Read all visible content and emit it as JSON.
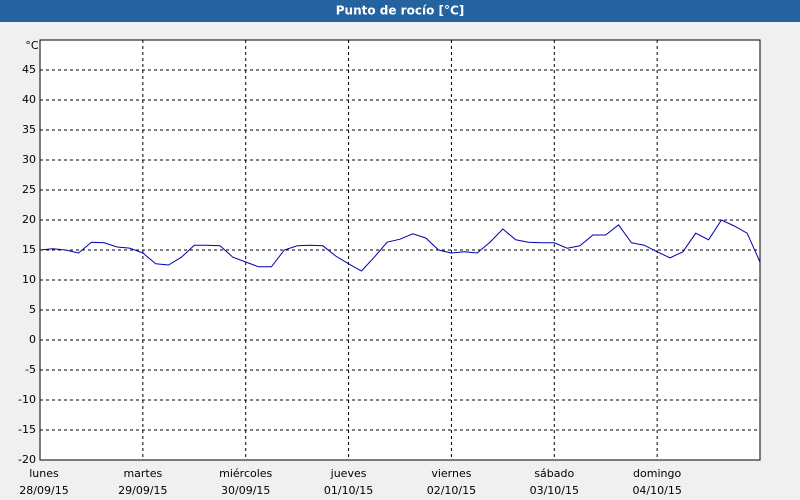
{
  "chart_data": {
    "type": "line",
    "title": "Punto de rocío [°C]",
    "y_label": "°C",
    "xlim": [
      0,
      7
    ],
    "xticks": [
      {
        "value": 0,
        "label": "lunes"
      },
      {
        "value": 1,
        "label": "martes"
      },
      {
        "value": 2,
        "label": "miércoles"
      },
      {
        "value": 3,
        "label": "jueves"
      },
      {
        "value": 4,
        "label": "viernes"
      },
      {
        "value": 5,
        "label": "sábado"
      },
      {
        "value": 6,
        "label": "domingo"
      }
    ],
    "xtick_dates": [
      "28/09/15",
      "29/09/15",
      "30/09/15",
      "01/10/15",
      "02/10/15",
      "03/10/15",
      "04/10/15"
    ],
    "ylim": [
      -20,
      50
    ],
    "yticks": [
      -20,
      -15,
      -10,
      -5,
      0,
      5,
      10,
      15,
      20,
      25,
      30,
      35,
      40,
      45
    ],
    "grid": true,
    "series": [
      {
        "name": "Punto de rocío",
        "color": "#0000a8",
        "x": [
          0,
          0.125,
          0.25,
          0.375,
          0.5,
          0.625,
          0.75,
          0.875,
          1,
          1.125,
          1.25,
          1.375,
          1.5,
          1.625,
          1.75,
          1.875,
          2,
          2.125,
          2.25,
          2.375,
          2.5,
          2.625,
          2.75,
          2.875,
          3,
          3.125,
          3.25,
          3.375,
          3.5,
          3.625,
          3.75,
          3.875,
          4,
          4.125,
          4.25,
          4.375,
          4.5,
          4.625,
          4.75,
          4.875,
          5,
          5.125,
          5.25,
          5.375,
          5.5,
          5.625,
          5.75,
          5.875,
          6,
          6.125,
          6.25,
          6.375,
          6.5,
          6.625,
          6.75,
          6.875,
          7
        ],
        "values": [
          15,
          15.2,
          15,
          14.5,
          16.3,
          16.2,
          15.5,
          15.3,
          14.5,
          12.7,
          12.5,
          13.8,
          15.8,
          15.8,
          15.7,
          13.8,
          13,
          12.2,
          12.2,
          15,
          15.7,
          15.8,
          15.7,
          14,
          12.7,
          11.5,
          13.8,
          16.3,
          16.8,
          17.7,
          17,
          15,
          14.5,
          14.7,
          14.5,
          16.3,
          18.5,
          16.7,
          16.3,
          16.2,
          16.2,
          15.3,
          15.7,
          17.5,
          17.5,
          19.2,
          16.2,
          15.8,
          14.7,
          13.7,
          14.7,
          17.8,
          16.7,
          20,
          19,
          17.8,
          13
        ]
      }
    ]
  }
}
